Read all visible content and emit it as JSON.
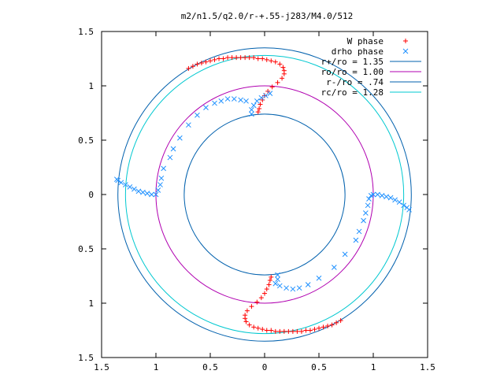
{
  "chart_data": {
    "type": "scatter",
    "title": "m2/n1.5/q2.0/r-+.55-j283/M4.0/512",
    "xlim": [
      -1.5,
      1.5
    ],
    "ylim": [
      -1.5,
      1.5
    ],
    "x_ticks": [
      {
        "value": -1.5,
        "label": "1.5"
      },
      {
        "value": -1.0,
        "label": "1"
      },
      {
        "value": -0.5,
        "label": "0.5"
      },
      {
        "value": 0.0,
        "label": "0"
      },
      {
        "value": 0.5,
        "label": "0.5"
      },
      {
        "value": 1.0,
        "label": "1"
      },
      {
        "value": 1.5,
        "label": "1.5"
      }
    ],
    "y_ticks": [
      {
        "value": 1.5,
        "label": "1.5"
      },
      {
        "value": 1.0,
        "label": "1"
      },
      {
        "value": 0.5,
        "label": "0.5"
      },
      {
        "value": 0.0,
        "label": "0"
      },
      {
        "value": -0.5,
        "label": "0.5"
      },
      {
        "value": -1.0,
        "label": "1"
      },
      {
        "value": -1.5,
        "label": "1.5"
      }
    ],
    "legend_position": "top-right",
    "series": [
      {
        "name": "W phase",
        "marker": "plus",
        "color": "#ff0000",
        "points": [
          [
            -0.7,
            1.16
          ],
          [
            -0.66,
            1.18
          ],
          [
            -0.62,
            1.2
          ],
          [
            -0.58,
            1.21
          ],
          [
            -0.54,
            1.22
          ],
          [
            -0.5,
            1.23
          ],
          [
            -0.46,
            1.24
          ],
          [
            -0.42,
            1.25
          ],
          [
            -0.38,
            1.25
          ],
          [
            -0.34,
            1.26
          ],
          [
            -0.3,
            1.26
          ],
          [
            -0.26,
            1.26
          ],
          [
            -0.22,
            1.26
          ],
          [
            -0.18,
            1.26
          ],
          [
            -0.14,
            1.26
          ],
          [
            -0.1,
            1.26
          ],
          [
            -0.06,
            1.25
          ],
          [
            -0.02,
            1.25
          ],
          [
            0.02,
            1.24
          ],
          [
            0.06,
            1.23
          ],
          [
            0.1,
            1.22
          ],
          [
            0.14,
            1.2
          ],
          [
            0.17,
            1.17
          ],
          [
            0.18,
            1.14
          ],
          [
            0.18,
            1.11
          ],
          [
            0.16,
            1.07
          ],
          [
            0.12,
            1.03
          ],
          [
            0.07,
            0.99
          ],
          [
            0.03,
            0.95
          ],
          [
            0.0,
            0.91
          ],
          [
            -0.02,
            0.87
          ],
          [
            -0.04,
            0.83
          ],
          [
            -0.05,
            0.79
          ],
          [
            -0.06,
            0.76
          ],
          [
            0.7,
            -1.16
          ],
          [
            0.66,
            -1.18
          ],
          [
            0.62,
            -1.2
          ],
          [
            0.58,
            -1.21
          ],
          [
            0.54,
            -1.22
          ],
          [
            0.5,
            -1.23
          ],
          [
            0.46,
            -1.24
          ],
          [
            0.42,
            -1.25
          ],
          [
            0.38,
            -1.25
          ],
          [
            0.34,
            -1.26
          ],
          [
            0.3,
            -1.26
          ],
          [
            0.26,
            -1.26
          ],
          [
            0.22,
            -1.26
          ],
          [
            0.18,
            -1.26
          ],
          [
            0.14,
            -1.26
          ],
          [
            0.1,
            -1.26
          ],
          [
            0.06,
            -1.25
          ],
          [
            0.02,
            -1.25
          ],
          [
            -0.02,
            -1.24
          ],
          [
            -0.06,
            -1.23
          ],
          [
            -0.1,
            -1.22
          ],
          [
            -0.14,
            -1.2
          ],
          [
            -0.17,
            -1.17
          ],
          [
            -0.18,
            -1.14
          ],
          [
            -0.18,
            -1.11
          ],
          [
            -0.16,
            -1.07
          ],
          [
            -0.12,
            -1.03
          ],
          [
            -0.07,
            -0.99
          ],
          [
            -0.03,
            -0.95
          ],
          [
            0.0,
            -0.91
          ],
          [
            0.02,
            -0.87
          ],
          [
            0.04,
            -0.83
          ],
          [
            0.05,
            -0.79
          ],
          [
            0.06,
            -0.76
          ]
        ]
      },
      {
        "name": "drho phase",
        "marker": "cross",
        "color": "#1e90ff",
        "points": [
          [
            -0.12,
            0.74
          ],
          [
            -0.12,
            0.78
          ],
          [
            -0.1,
            0.82
          ],
          [
            -0.07,
            0.86
          ],
          [
            -0.03,
            0.89
          ],
          [
            0.01,
            0.91
          ],
          [
            0.05,
            0.93
          ],
          [
            -0.17,
            0.86
          ],
          [
            -0.22,
            0.87
          ],
          [
            -0.28,
            0.88
          ],
          [
            -0.34,
            0.88
          ],
          [
            -0.4,
            0.86
          ],
          [
            -0.46,
            0.84
          ],
          [
            -0.54,
            0.8
          ],
          [
            -0.62,
            0.73
          ],
          [
            -0.7,
            0.64
          ],
          [
            -0.78,
            0.52
          ],
          [
            -0.84,
            0.42
          ],
          [
            -0.87,
            0.34
          ],
          [
            -0.93,
            0.24
          ],
          [
            -0.95,
            0.15
          ],
          [
            -0.96,
            0.09
          ],
          [
            -0.98,
            0.04
          ],
          [
            -1.0,
            0.0
          ],
          [
            -1.04,
            0.0
          ],
          [
            -1.08,
            0.01
          ],
          [
            -1.12,
            0.02
          ],
          [
            -1.16,
            0.03
          ],
          [
            -1.2,
            0.05
          ],
          [
            -1.24,
            0.07
          ],
          [
            -1.28,
            0.09
          ],
          [
            -1.32,
            0.11
          ],
          [
            -1.35,
            0.13
          ],
          [
            -1.36,
            0.14
          ],
          [
            0.12,
            -0.74
          ],
          [
            0.12,
            -0.78
          ],
          [
            0.1,
            -0.82
          ],
          [
            0.14,
            -0.84
          ],
          [
            0.2,
            -0.86
          ],
          [
            0.26,
            -0.87
          ],
          [
            0.32,
            -0.86
          ],
          [
            0.4,
            -0.83
          ],
          [
            0.5,
            -0.77
          ],
          [
            0.64,
            -0.67
          ],
          [
            0.74,
            -0.55
          ],
          [
            0.84,
            -0.42
          ],
          [
            0.87,
            -0.34
          ],
          [
            0.91,
            -0.24
          ],
          [
            0.93,
            -0.17
          ],
          [
            0.95,
            -0.1
          ],
          [
            0.96,
            -0.04
          ],
          [
            0.98,
            -0.01
          ],
          [
            1.0,
            0.0
          ],
          [
            1.04,
            0.0
          ],
          [
            1.08,
            -0.01
          ],
          [
            1.12,
            -0.02
          ],
          [
            1.16,
            -0.03
          ],
          [
            1.2,
            -0.05
          ],
          [
            1.24,
            -0.07
          ],
          [
            1.28,
            -0.1
          ],
          [
            1.31,
            -0.12
          ],
          [
            1.33,
            -0.14
          ]
        ]
      }
    ],
    "circles": [
      {
        "name": "r+/ro = 1.35",
        "radius": 1.35,
        "color": "#0060ad"
      },
      {
        "name": "ro/ro = 1.00",
        "radius": 1.0,
        "color": "#b000b0"
      },
      {
        "name": "r-/ro = .74",
        "radius": 0.74,
        "color": "#0060ad"
      },
      {
        "name": "rc/ro = 1.28",
        "radius": 1.28,
        "color": "#00c8d0"
      }
    ]
  }
}
